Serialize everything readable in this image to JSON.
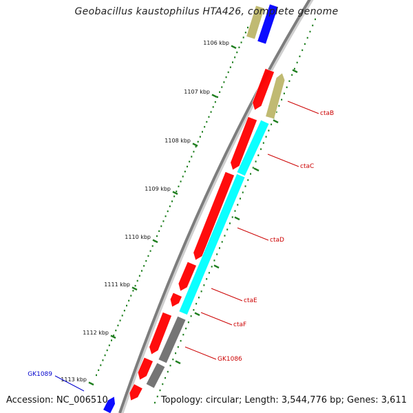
{
  "title": "Geobacillus kaustophilus HTA426, complete genome",
  "footer": {
    "accession": "Accession: NC_006510",
    "topology": "Topology: circular; Length: 3,544,776 bp; Genes: 3,611"
  },
  "colors": {
    "backbone": "#7d7d7d",
    "tick": "#1f7f1f",
    "gene_forward": "#ff0000",
    "gene_cyan": "#00ffff",
    "gene_khaki": "#bdb76b",
    "gene_blue": "#0000ff",
    "gene_gray": "#6e6e6e",
    "label_red": "#cc0000",
    "label_blue": "#0000cc"
  },
  "ticks": [
    {
      "label": "1106 kbp"
    },
    {
      "label": "1107 kbp"
    },
    {
      "label": "1108 kbp"
    },
    {
      "label": "1109 kbp"
    },
    {
      "label": "1110 kbp"
    },
    {
      "label": "1111 kbp"
    },
    {
      "label": "1112 kbp"
    },
    {
      "label": "1113 kbp"
    }
  ],
  "gene_labels": [
    {
      "name": "ctaB",
      "color": "red"
    },
    {
      "name": "ctaC",
      "color": "red"
    },
    {
      "name": "ctaD",
      "color": "red"
    },
    {
      "name": "ctaE",
      "color": "red"
    },
    {
      "name": "ctaF",
      "color": "red"
    },
    {
      "name": "GK1086",
      "color": "red"
    },
    {
      "name": "GK1089",
      "color": "blue"
    }
  ]
}
